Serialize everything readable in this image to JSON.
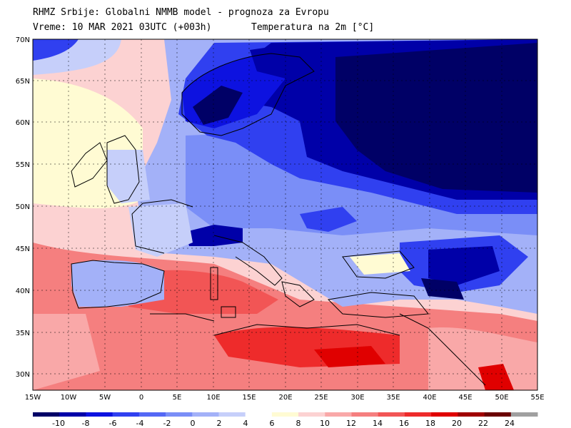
{
  "header": {
    "line1": "RHMZ Srbije: Globalni NMMB model - prognoza za Evropu",
    "line2_left": "Vreme: 10 MAR 2021 03UTC (+003h)",
    "line2_right": "Temperatura na 2m [°C]"
  },
  "axes": {
    "lat_labels": [
      "70N",
      "65N",
      "60N",
      "55N",
      "50N",
      "45N",
      "40N",
      "35N",
      "30N"
    ],
    "lon_labels": [
      "15W",
      "10W",
      "5W",
      "0",
      "5E",
      "10E",
      "15E",
      "20E",
      "25E",
      "30E",
      "35E",
      "40E",
      "45E",
      "50E",
      "55E"
    ]
  },
  "colorbar": {
    "labels": [
      "-10",
      "-8",
      "-6",
      "-4",
      "-2",
      "0",
      "2",
      "4",
      "6",
      "8",
      "10",
      "12",
      "14",
      "16",
      "18",
      "20",
      "22",
      "24"
    ],
    "colors": [
      "#000066",
      "#0000a8",
      "#0d12e0",
      "#3040f0",
      "#5468f5",
      "#7a8ef7",
      "#a3b1f8",
      "#c6cffa",
      "#ffffff",
      "#fffbd3",
      "#fcd2d2",
      "#f9a8a8",
      "#f57f7f",
      "#f25555",
      "#ee2b2b",
      "#e00000",
      "#a00000",
      "#6a0000",
      "#a0a0a0"
    ]
  },
  "map": {
    "region": "Evropa",
    "lon_range": [
      -15,
      55
    ],
    "lat_range": [
      28,
      70
    ],
    "field": "Temperatura na 2m",
    "unit": "°C",
    "cities_marked": false
  }
}
